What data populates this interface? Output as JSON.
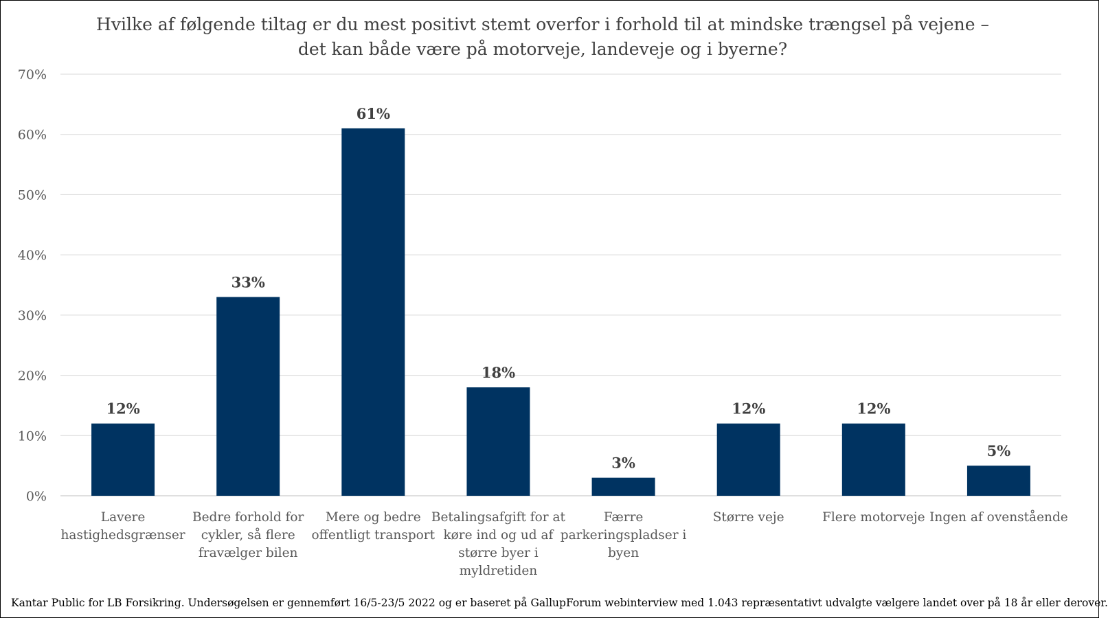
{
  "chart_data": {
    "type": "bar",
    "title": "Hvilke af følgende tiltag er du mest positivt stemt overfor i forhold til at mindske trængsel på vejene – det kan både være på motorveje, landeveje og i byerne?",
    "categories": [
      [
        "Lavere",
        "hastighedsgrænser"
      ],
      [
        "Bedre forhold for",
        "cykler, så flere",
        "fravælger bilen"
      ],
      [
        "Mere og bedre",
        "offentligt transport"
      ],
      [
        "Betalingsafgift for at",
        "køre ind og ud af",
        "større byer i",
        "myldretiden"
      ],
      [
        "Færre",
        "parkeringspladser i",
        "byen"
      ],
      [
        "Større veje"
      ],
      [
        "Flere motorveje"
      ],
      [
        "Ingen af ovenstående"
      ]
    ],
    "values": [
      12,
      33,
      61,
      18,
      3,
      12,
      12,
      5
    ],
    "value_labels": [
      "12%",
      "33%",
      "61%",
      "18%",
      "3%",
      "12%",
      "12%",
      "5%"
    ],
    "yticks": [
      "0%",
      "10%",
      "20%",
      "30%",
      "40%",
      "50%",
      "60%",
      "70%"
    ],
    "ylim": [
      0,
      70
    ],
    "grid": true,
    "bar_color": "#003361",
    "xlabel": "",
    "ylabel": ""
  },
  "footer": "Kantar Public for LB Forsikring. Undersøgelsen er gennemført 16/5-23/5 2022 og er baseret på GallupForum webinterview med 1.043 repræsentativt udvalgte vælgere landet over på 18 år eller derover."
}
